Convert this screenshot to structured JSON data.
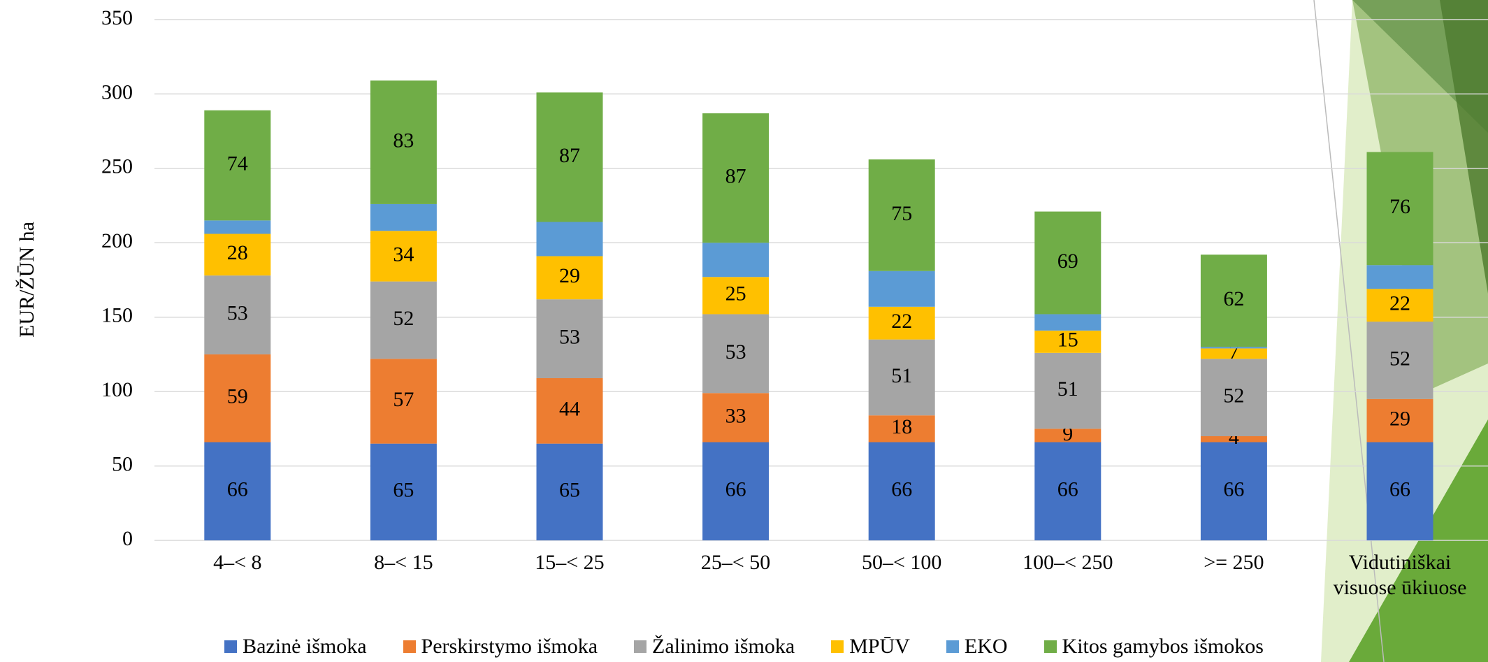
{
  "chart_data": {
    "type": "bar",
    "stacked": true,
    "y_label": "EUR/ŽŪN ha",
    "categories": [
      "4–< 8",
      "8–< 15",
      "15–< 25",
      "25–< 50",
      "50–< 100",
      "100–< 250",
      ">= 250",
      "Vidutiniškai visuose ūkiuose"
    ],
    "series": [
      {
        "name": "Bazinė išmoka",
        "color": "#4472c4",
        "values": [
          66,
          65,
          65,
          66,
          66,
          66,
          66,
          66
        ],
        "show_labels": true
      },
      {
        "name": "Perskirstymo išmoka",
        "color": "#ed7d31",
        "values": [
          59,
          57,
          44,
          33,
          18,
          9,
          4,
          29
        ],
        "show_labels": true
      },
      {
        "name": "Žalinimo išmoka",
        "color": "#a5a5a5",
        "values": [
          53,
          52,
          53,
          53,
          51,
          51,
          52,
          52
        ],
        "show_labels": true
      },
      {
        "name": "MPŪV",
        "color": "#ffc000",
        "values": [
          28,
          34,
          29,
          25,
          22,
          15,
          7,
          22
        ],
        "show_labels": true
      },
      {
        "name": "EKO",
        "color": "#5b9bd5",
        "values": [
          9,
          18,
          23,
          23,
          24,
          11,
          1,
          16
        ],
        "show_labels": false
      },
      {
        "name": "Kitos gamybos išmokos",
        "color": "#70ad47",
        "values": [
          74,
          83,
          87,
          87,
          75,
          69,
          62,
          76
        ],
        "show_labels": true
      }
    ],
    "ylim": [
      0,
      350
    ],
    "yticks": [
      0,
      50,
      100,
      150,
      200,
      250,
      300,
      350
    ],
    "grid": true,
    "legend": "bottom"
  }
}
